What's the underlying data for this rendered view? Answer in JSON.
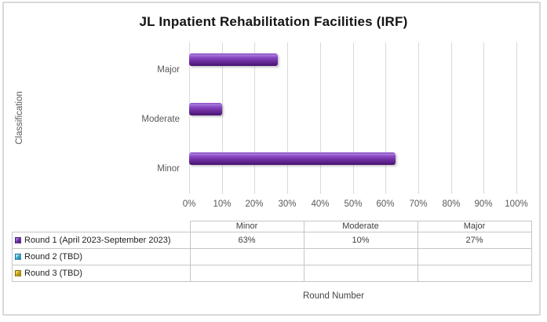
{
  "chart_data": {
    "type": "bar",
    "orientation": "horizontal",
    "title": "JL Inpatient Rehabilitation Facilities (IRF)",
    "ylabel": "Classification",
    "categories_top_to_bottom": [
      "Major",
      "Moderate",
      "Minor"
    ],
    "x_ticks": [
      "0%",
      "10%",
      "20%",
      "30%",
      "40%",
      "50%",
      "60%",
      "70%",
      "80%",
      "90%",
      "100%"
    ],
    "xlim": [
      0,
      100
    ],
    "grid": "vertical-gridlines-on",
    "legend_position": "data-table-below",
    "series": [
      {
        "name": "Round 1 (April 2023-September 2023)",
        "color": "#7030A0",
        "values": {
          "Minor": 63,
          "Moderate": 10,
          "Major": 27
        }
      },
      {
        "name": "Round 2 (TBD)",
        "color": "#1F9BC6",
        "values": {
          "Minor": null,
          "Moderate": null,
          "Major": null
        }
      },
      {
        "name": "Round 3 (TBD)",
        "color": "#B8940F",
        "values": {
          "Minor": null,
          "Moderate": null,
          "Major": null
        }
      }
    ]
  },
  "data_table": {
    "column_headers": [
      "Minor",
      "Moderate",
      "Major"
    ],
    "rows": [
      {
        "label": "Round 1 (April 2023-September 2023)",
        "marker_top": "#A06CCF",
        "marker_color": "#61279E",
        "values": [
          "63%",
          "10%",
          "27%"
        ]
      },
      {
        "label": "Round 2 (TBD)",
        "marker_top": "#9FE0F0",
        "marker_color": "#1F9BC6",
        "values": [
          "",
          "",
          ""
        ]
      },
      {
        "label": "Round 3 (TBD)",
        "marker_top": "#ECD54A",
        "marker_color": "#B8940F",
        "values": [
          "",
          "",
          ""
        ]
      }
    ],
    "axis_title": "Round Number"
  },
  "style": {
    "bar_gradient": [
      "#A678D9",
      "#8A49C5",
      "#7030A0",
      "#471372"
    ],
    "gridline_color": "#D9D9D9",
    "axis_text_color": "#595959",
    "border_color": "#D9D9D9"
  }
}
